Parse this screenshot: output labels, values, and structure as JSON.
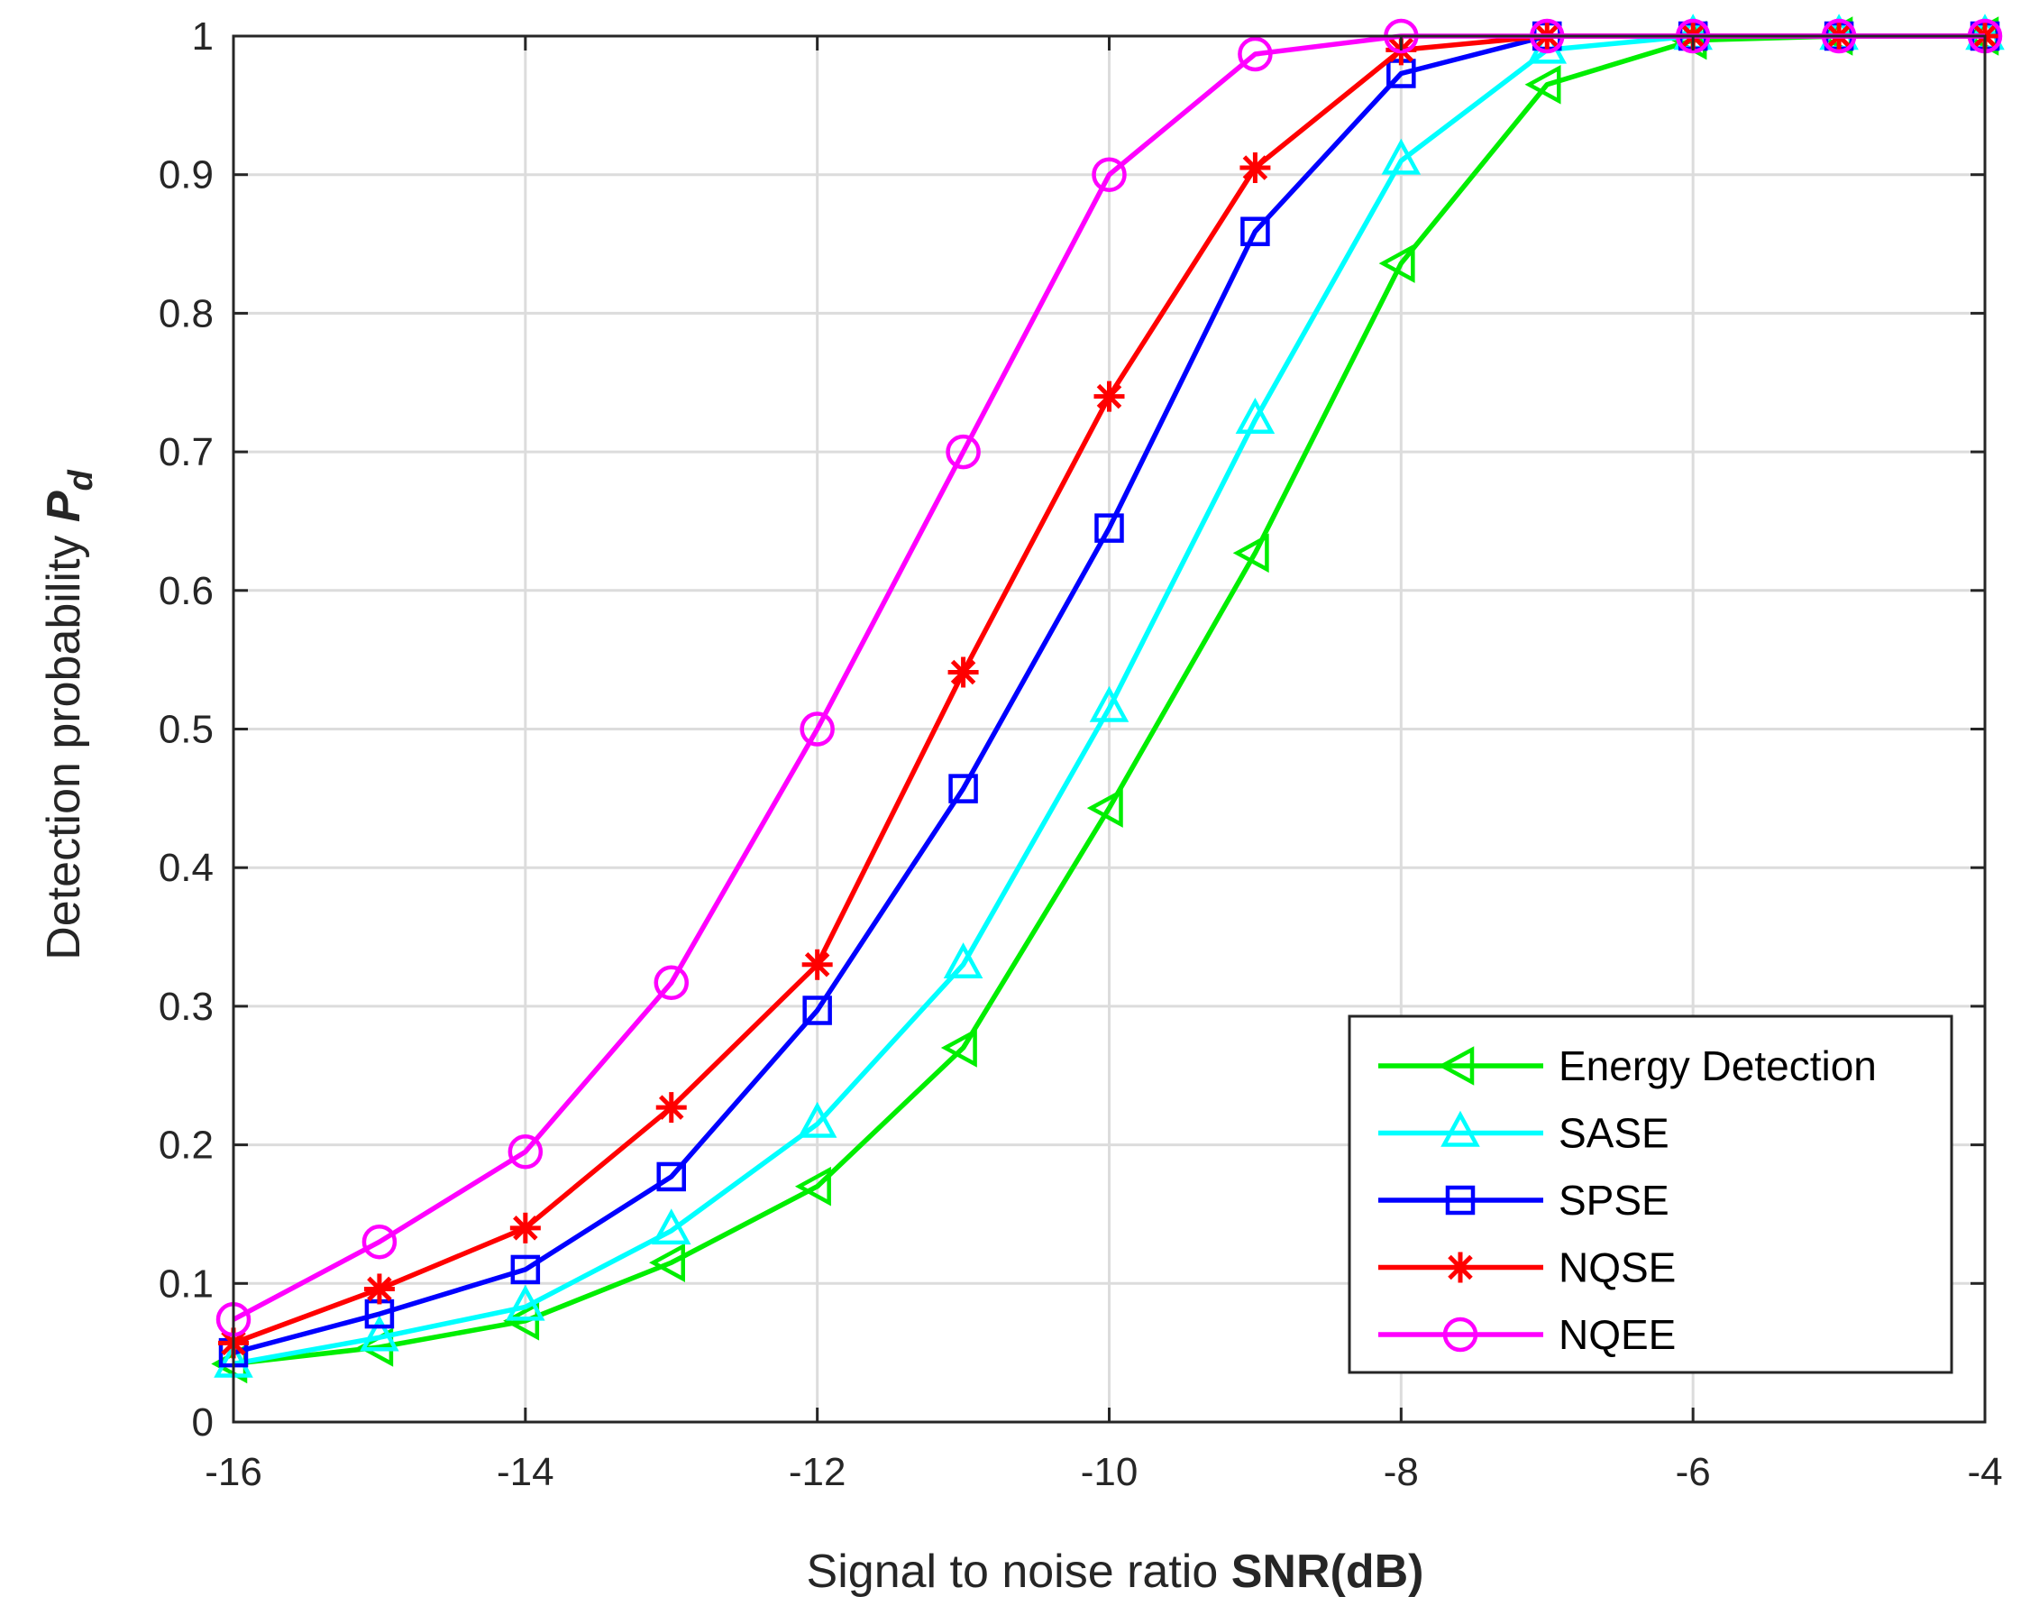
{
  "chart_data": {
    "type": "line",
    "title": "",
    "xlabel": {
      "normal": "Signal to noise ratio ",
      "bold": "SNR(dB)"
    },
    "ylabel": {
      "normal": "Detection probability ",
      "symbol": "P",
      "subscript": "d"
    },
    "xlim": [
      -16,
      -4
    ],
    "ylim": [
      0,
      1
    ],
    "xticks": [
      -16,
      -14,
      -12,
      -10,
      -8,
      -6,
      -4
    ],
    "yticks": [
      0,
      0.1,
      0.2,
      0.3,
      0.4,
      0.5,
      0.6,
      0.7,
      0.8,
      0.9,
      1
    ],
    "xtick_labels": [
      "-16",
      "-14",
      "-12",
      "-10",
      "-8",
      "-6",
      "-4"
    ],
    "ytick_labels": [
      "0",
      "0.1",
      "0.2",
      "0.3",
      "0.4",
      "0.5",
      "0.6",
      "0.7",
      "0.8",
      "0.9",
      "1"
    ],
    "grid": true,
    "legend_position": "bottom-right",
    "x": [
      -16,
      -15,
      -14,
      -13,
      -12,
      -11,
      -10,
      -9,
      -8,
      -7,
      -6,
      -5,
      -4
    ],
    "series": [
      {
        "name": "Energy Detection",
        "color": "#00ee00",
        "marker": "triangle-left",
        "values": [
          0.042,
          0.054,
          0.073,
          0.115,
          0.17,
          0.27,
          0.443,
          0.627,
          0.836,
          0.965,
          0.997,
          1.0,
          1.0
        ]
      },
      {
        "name": "SASE",
        "color": "#00ffff",
        "marker": "triangle-up",
        "values": [
          0.042,
          0.061,
          0.083,
          0.138,
          0.215,
          0.33,
          0.515,
          0.723,
          0.91,
          0.99,
          1.0,
          1.0,
          1.0
        ]
      },
      {
        "name": "SPSE",
        "color": "#0000ff",
        "marker": "square",
        "values": [
          0.05,
          0.078,
          0.11,
          0.177,
          0.297,
          0.457,
          0.645,
          0.859,
          0.973,
          1.0,
          1.0,
          1.0,
          1.0
        ]
      },
      {
        "name": "NQSE",
        "color": "#ff0000",
        "marker": "asterisk",
        "values": [
          0.057,
          0.096,
          0.14,
          0.227,
          0.33,
          0.541,
          0.74,
          0.905,
          0.99,
          1.0,
          1.0,
          1.0,
          1.0
        ]
      },
      {
        "name": "NQEE",
        "color": "#ff00ff",
        "marker": "circle",
        "values": [
          0.074,
          0.13,
          0.195,
          0.317,
          0.5,
          0.7,
          0.9,
          0.987,
          1.0,
          1.0,
          1.0,
          1.0,
          1.0
        ]
      }
    ]
  }
}
